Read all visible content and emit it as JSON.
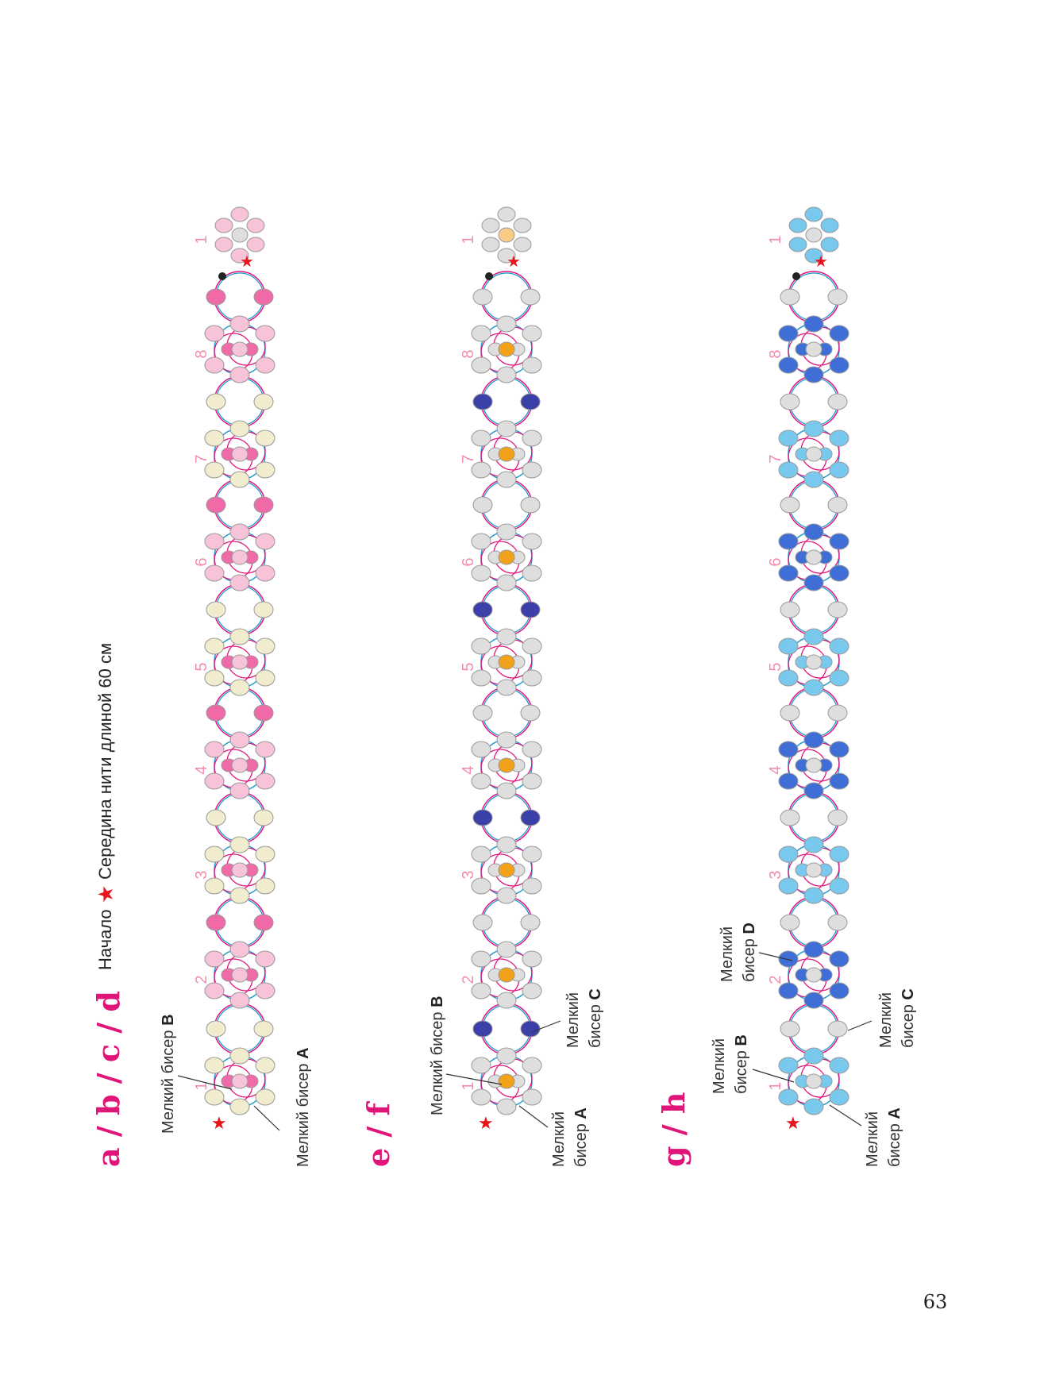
{
  "page_number": "63",
  "legend": {
    "prefix": "Начало",
    "suffix": "Середина нити длиной 60 см",
    "star_color": "#e8151f"
  },
  "colors": {
    "pink_thread": "#e0157a",
    "blue_thread": "#1f9bd1",
    "gray_bead": "#dedede",
    "pink_bead": "#f06aa8",
    "pale_pink_bead": "#f6c3d9",
    "cream_bead": "#f1eccd",
    "navy_bead": "#3b3fa8",
    "orange_bead": "#f2a21a",
    "pale_orange_bead": "#f8cc87",
    "light_blue_bead": "#79c8ee",
    "blue_bead": "#3f6fd6"
  },
  "sections": [
    {
      "title": "a / b / c / d",
      "callouts": [
        {
          "text": "Мелкий бисер ",
          "bold": "B"
        },
        {
          "text": "Мелкий бисер ",
          "bold": "A"
        }
      ],
      "motif_numbers": [
        "1",
        "2",
        "3",
        "4",
        "5",
        "6",
        "7",
        "8",
        "1"
      ]
    },
    {
      "title": "e / f",
      "callouts": [
        {
          "text": "Мелкий бисер ",
          "bold": "B"
        },
        {
          "text": "Мелкий",
          "line2": "бисер ",
          "bold": "A"
        },
        {
          "text": "Мелкий",
          "line2": "бисер ",
          "bold": "C"
        }
      ],
      "motif_numbers": [
        "1",
        "2",
        "3",
        "4",
        "5",
        "6",
        "7",
        "8",
        "1"
      ]
    },
    {
      "title": "g / h",
      "callouts": [
        {
          "text": "Мелкий",
          "line2": "бисер ",
          "bold": "B"
        },
        {
          "text": "Мелкий",
          "line2": "бисер ",
          "bold": "D"
        },
        {
          "text": "Мелкий",
          "line2": "бисер ",
          "bold": "A"
        },
        {
          "text": "Мелкий",
          "line2": "бисер ",
          "bold": "C"
        }
      ],
      "motif_numbers": [
        "1",
        "2",
        "3",
        "4",
        "5",
        "6",
        "7",
        "8",
        "1"
      ]
    }
  ]
}
